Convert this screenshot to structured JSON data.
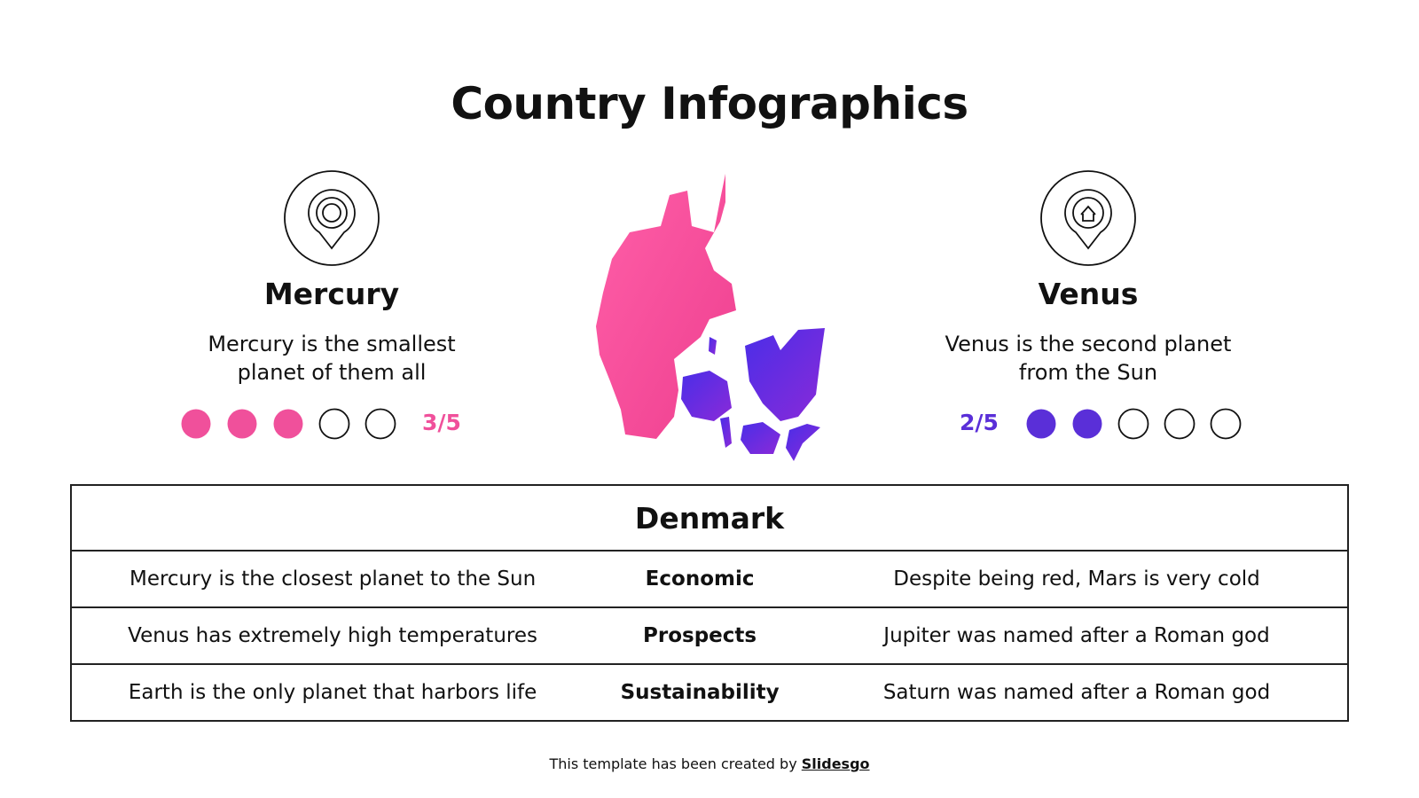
{
  "title": "Country Infographics",
  "planets": [
    {
      "name": "Mercury",
      "description": "Mercury is the smallest planet of them all",
      "rating": {
        "value": 3,
        "max": 5,
        "label": "3/5"
      },
      "color": "#f0509b"
    },
    {
      "name": "Venus",
      "description": "Venus is the second planet from the Sun",
      "rating": {
        "value": 2,
        "max": 5,
        "label": "2/5"
      },
      "color": "#5a2fd8"
    }
  ],
  "table": {
    "title": "Denmark",
    "rows": [
      [
        "Mercury is the closest planet to the Sun",
        "Economic",
        "Despite being red, Mars is very cold"
      ],
      [
        "Venus has extremely high temperatures",
        "Prospects",
        "Jupiter was named after a Roman god"
      ],
      [
        "Earth is the only planet that harbors life",
        "Sustainability",
        "Saturn was named after a Roman god"
      ]
    ]
  },
  "footer": {
    "text": "This template has been created by",
    "link": "Slidesgo"
  }
}
